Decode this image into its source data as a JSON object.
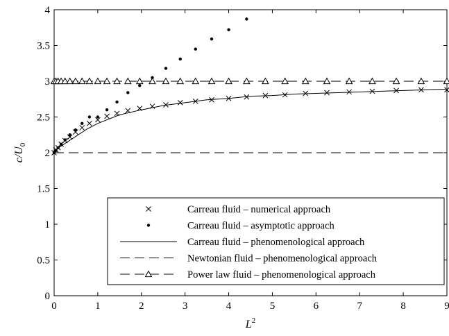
{
  "chart_data": {
    "type": "line",
    "xlabel": {
      "base": "L",
      "sup": "2"
    },
    "ylabel": {
      "base": "c/U",
      "sub": "0"
    },
    "xlim": [
      0,
      9
    ],
    "ylim": [
      0,
      4
    ],
    "xticks": [
      0,
      1,
      2,
      3,
      4,
      5,
      6,
      7,
      8,
      9
    ],
    "yticks": [
      0,
      0.5,
      1,
      1.5,
      2,
      2.5,
      3,
      3.5,
      4
    ],
    "ytick_labels": [
      "0",
      "0.5",
      "1",
      "1.5",
      "2",
      "2.5",
      "3",
      "3.5",
      "4"
    ],
    "grid": false,
    "legend_position": "bottom-right",
    "series": [
      {
        "name": "Carreau fluid – numerical approach",
        "style": "x-markers",
        "x": [
          0,
          0.04,
          0.09,
          0.16,
          0.25,
          0.36,
          0.49,
          0.64,
          0.81,
          1.0,
          1.21,
          1.44,
          1.69,
          1.96,
          2.25,
          2.56,
          2.89,
          3.24,
          3.61,
          4.0,
          4.41,
          4.84,
          5.29,
          5.76,
          6.25,
          6.76,
          7.29,
          7.84,
          8.41,
          9.0
        ],
        "y": [
          2.0,
          2.04,
          2.07,
          2.12,
          2.17,
          2.22,
          2.29,
          2.35,
          2.41,
          2.46,
          2.51,
          2.55,
          2.59,
          2.62,
          2.65,
          2.67,
          2.7,
          2.72,
          2.74,
          2.76,
          2.78,
          2.8,
          2.81,
          2.83,
          2.84,
          2.85,
          2.86,
          2.87,
          2.88,
          2.88
        ]
      },
      {
        "name": "Carreau fluid – asymptotic approach",
        "style": "dots",
        "x": [
          0,
          0.04,
          0.09,
          0.16,
          0.25,
          0.36,
          0.49,
          0.64,
          0.81,
          1.0,
          1.21,
          1.44,
          1.69,
          1.96,
          2.25,
          2.56,
          2.89,
          3.24,
          3.61,
          4.0,
          4.41
        ],
        "y": [
          2.0,
          2.03,
          2.07,
          2.12,
          2.18,
          2.25,
          2.32,
          2.41,
          2.5,
          2.5,
          2.6,
          2.71,
          2.84,
          2.94,
          3.05,
          3.18,
          3.31,
          3.45,
          3.59,
          3.72,
          3.87
        ]
      },
      {
        "name": "Carreau fluid – phenomenological approach",
        "style": "solid",
        "x": [
          0,
          0.1,
          0.2,
          0.3,
          0.5,
          0.75,
          1.0,
          1.5,
          2.0,
          2.5,
          3.0,
          3.5,
          4.0,
          4.5,
          5.0,
          5.5,
          6.0,
          6.5,
          7.0,
          7.5,
          8.0,
          8.5,
          9.0
        ],
        "y": [
          2.0,
          2.07,
          2.11,
          2.15,
          2.23,
          2.33,
          2.41,
          2.53,
          2.6,
          2.66,
          2.7,
          2.74,
          2.76,
          2.79,
          2.8,
          2.82,
          2.83,
          2.84,
          2.85,
          2.86,
          2.87,
          2.88,
          2.89
        ]
      },
      {
        "name": "Newtonian fluid – phenomenological approach",
        "style": "dashed",
        "x": [
          0,
          9
        ],
        "y": [
          2.0,
          2.0
        ]
      },
      {
        "name": "Power law fluid – phenomenological approach",
        "style": "dashed-triangles",
        "x": [
          0,
          0.04,
          0.09,
          0.16,
          0.25,
          0.36,
          0.49,
          0.64,
          0.81,
          1.0,
          1.21,
          1.44,
          1.69,
          1.96,
          2.25,
          2.56,
          2.89,
          3.24,
          3.61,
          4.0,
          4.41,
          4.84,
          5.29,
          5.76,
          6.25,
          6.76,
          7.29,
          7.84,
          8.41,
          9.0
        ],
        "y": [
          3,
          3,
          3,
          3,
          3,
          3,
          3,
          3,
          3,
          3,
          3,
          3,
          3,
          3,
          3,
          3,
          3,
          3,
          3,
          3,
          3,
          3,
          3,
          3,
          3,
          3,
          3,
          3,
          3,
          3
        ]
      }
    ]
  }
}
